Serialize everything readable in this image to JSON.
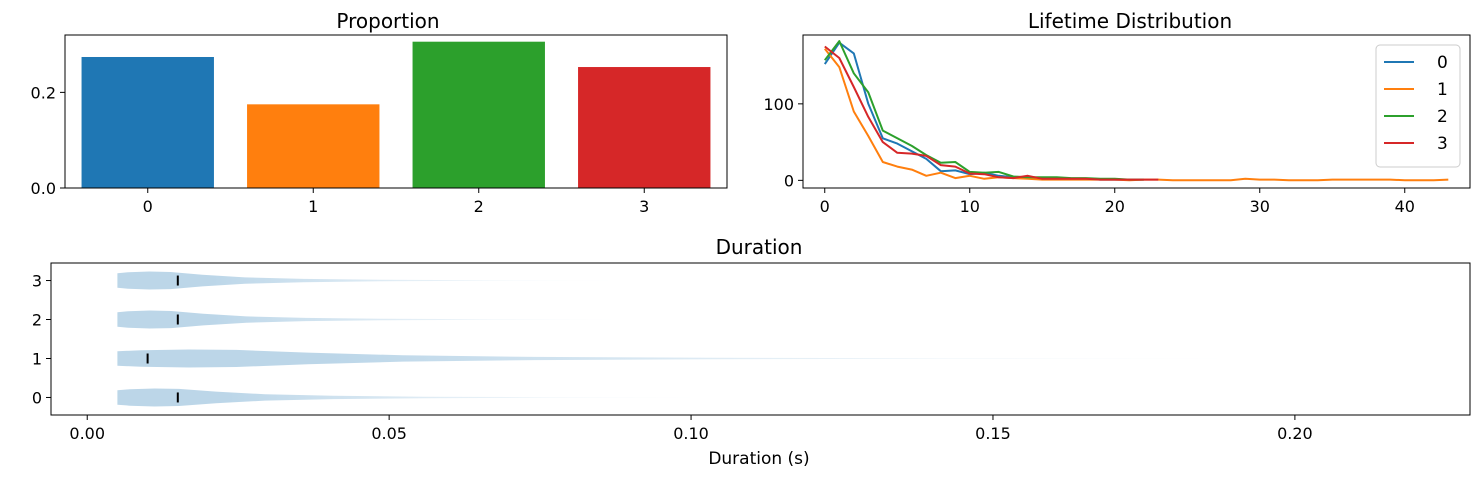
{
  "chart_data": [
    {
      "type": "bar",
      "title": "Proportion",
      "categories": [
        "0",
        "1",
        "2",
        "3"
      ],
      "values": [
        0.274,
        0.175,
        0.306,
        0.253
      ],
      "ylim": [
        0,
        0.32
      ],
      "yticks": [
        0.0,
        0.2
      ],
      "ytick_labels": [
        "0.0",
        "0.2"
      ],
      "colors": [
        "#1f77b4",
        "#ff7f0e",
        "#2ca02c",
        "#d62728"
      ],
      "xlabel": "",
      "ylabel": "",
      "grid": false
    },
    {
      "type": "line",
      "title": "Lifetime Distribution",
      "xlim": [
        -1.5,
        44.5
      ],
      "ylim": [
        -10,
        190
      ],
      "xticks": [
        0,
        10,
        20,
        30,
        40
      ],
      "xtick_labels": [
        "0",
        "10",
        "20",
        "30",
        "40"
      ],
      "yticks": [
        0,
        100
      ],
      "ytick_labels": [
        "0",
        "100"
      ],
      "legend": "top-right",
      "grid": false,
      "series": [
        {
          "name": "0",
          "color": "#1f77b4",
          "x": [
            0,
            1,
            2,
            3,
            4,
            5,
            6,
            7,
            8,
            9,
            10,
            11,
            12,
            13,
            14,
            15,
            16,
            17,
            18,
            19,
            20,
            21,
            22
          ],
          "y": [
            152,
            180,
            166,
            100,
            55,
            48,
            38,
            28,
            12,
            13,
            8,
            10,
            6,
            4,
            3,
            3,
            2,
            2,
            2,
            1,
            1,
            1,
            1
          ]
        },
        {
          "name": "1",
          "color": "#ff7f0e",
          "x": [
            0,
            1,
            2,
            3,
            4,
            5,
            6,
            7,
            8,
            9,
            10,
            11,
            12,
            13,
            14,
            15,
            16,
            17,
            18,
            19,
            20,
            21,
            22,
            23,
            24,
            25,
            26,
            27,
            28,
            29,
            30,
            31,
            32,
            33,
            34,
            35,
            36,
            37,
            38,
            39,
            40,
            41,
            42,
            43
          ],
          "y": [
            172,
            148,
            90,
            58,
            24,
            18,
            14,
            6,
            10,
            3,
            6,
            2,
            4,
            3,
            2,
            1,
            1,
            1,
            1,
            1,
            1,
            0,
            1,
            1,
            0,
            0,
            0,
            0,
            0,
            2,
            1,
            1,
            0,
            0,
            0,
            1,
            1,
            1,
            1,
            1,
            0,
            0,
            0,
            1
          ]
        },
        {
          "name": "2",
          "color": "#2ca02c",
          "x": [
            0,
            1,
            2,
            3,
            4,
            5,
            6,
            7,
            8,
            9,
            10,
            11,
            12,
            13,
            14,
            15,
            16,
            17,
            18,
            19,
            20,
            21,
            22
          ],
          "y": [
            157,
            182,
            140,
            115,
            65,
            55,
            45,
            33,
            23,
            24,
            11,
            10,
            11,
            5,
            4,
            4,
            4,
            3,
            3,
            2,
            2,
            1,
            1
          ]
        },
        {
          "name": "3",
          "color": "#d62728",
          "x": [
            0,
            1,
            2,
            3,
            4,
            5,
            6,
            7,
            8,
            9,
            10,
            11,
            12,
            13,
            14,
            15,
            16,
            17,
            18,
            19,
            20,
            21,
            22,
            23
          ],
          "y": [
            175,
            160,
            122,
            83,
            50,
            36,
            35,
            32,
            20,
            18,
            9,
            8,
            4,
            3,
            6,
            2,
            2,
            2,
            2,
            1,
            1,
            1,
            1,
            1
          ]
        }
      ]
    },
    {
      "type": "violin",
      "title": "Duration",
      "xlabel": "Duration (s)",
      "xlim": [
        -0.006,
        0.229
      ],
      "ylim": [
        -0.45,
        3.45
      ],
      "xticks": [
        0.0,
        0.05,
        0.1,
        0.15,
        0.2
      ],
      "xtick_labels": [
        "0.00",
        "0.05",
        "0.10",
        "0.15",
        "0.20"
      ],
      "yticks": [
        0,
        1,
        2,
        3
      ],
      "ytick_labels": [
        "0",
        "1",
        "2",
        "3"
      ],
      "color": "#1f77b4",
      "grid": false,
      "violins": [
        {
          "position": 0,
          "min": 0.005,
          "median": 0.015,
          "max": 0.107
        },
        {
          "position": 1,
          "min": 0.005,
          "median": 0.01,
          "max": 0.202
        },
        {
          "position": 2,
          "min": 0.005,
          "median": 0.015,
          "max": 0.094
        },
        {
          "position": 3,
          "min": 0.005,
          "median": 0.015,
          "max": 0.093
        }
      ]
    }
  ]
}
